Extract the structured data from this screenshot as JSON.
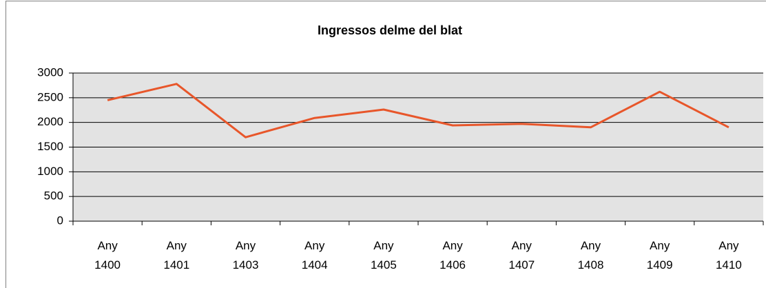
{
  "chart_data": {
    "type": "line",
    "title": "Ingressos delme del blat",
    "categories": [
      "Any 1400",
      "Any 1401",
      "Any 1403",
      "Any 1404",
      "Any 1405",
      "Any 1406",
      "Any 1407",
      "Any 1408",
      "Any 1409",
      "Any 1410"
    ],
    "series": [
      {
        "name": "Ingressos",
        "color": "#e8562a",
        "values": [
          2450,
          2780,
          1700,
          2090,
          2260,
          1940,
          1970,
          1900,
          2620,
          1900
        ]
      }
    ],
    "ylim": [
      0,
      3000
    ],
    "yticks": [
      0,
      500,
      1000,
      1500,
      2000,
      2500,
      3000
    ],
    "grid": true
  }
}
